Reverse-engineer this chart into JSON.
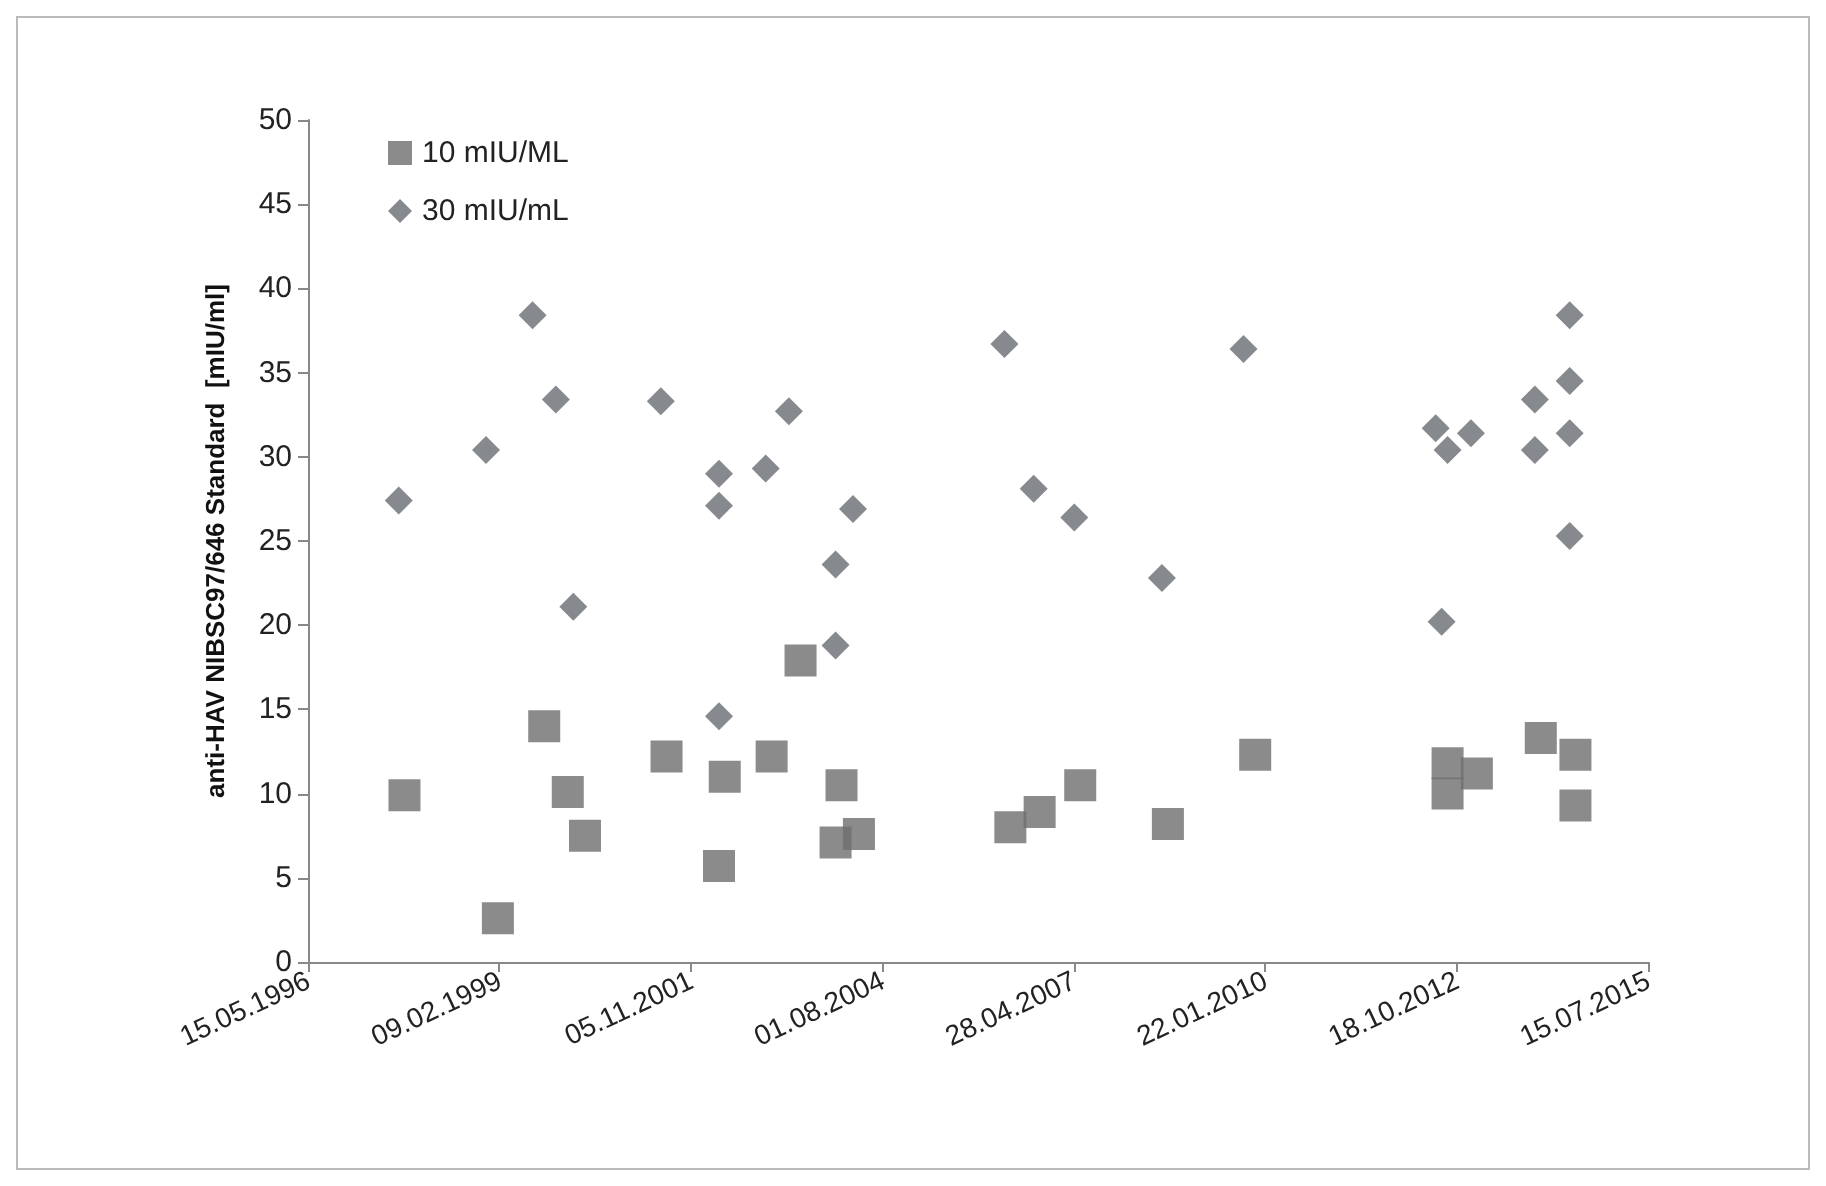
{
  "chart_data": {
    "type": "scatter",
    "ylabel": "anti-HAV NIBSC97/646 Standard  [mIU/ml]",
    "xlim": [
      "1996-05-15",
      "2015-07-15"
    ],
    "xticks": [
      {
        "value": "1996-05-15",
        "label": "15.05.1996"
      },
      {
        "value": "1999-02-09",
        "label": "09.02.1999"
      },
      {
        "value": "2001-11-05",
        "label": "05.11.2001"
      },
      {
        "value": "2004-08-01",
        "label": "01.08.2004"
      },
      {
        "value": "2007-04-28",
        "label": "28.04.2007"
      },
      {
        "value": "2010-01-22",
        "label": "22.01.2010"
      },
      {
        "value": "2012-10-18",
        "label": "18.10.2012"
      },
      {
        "value": "2015-07-15",
        "label": "15.07.2015"
      }
    ],
    "ylim": [
      0,
      50
    ],
    "yticks": [
      0,
      5,
      10,
      15,
      20,
      25,
      30,
      35,
      40,
      45,
      50
    ],
    "grid": false,
    "legend": "top left",
    "series": [
      {
        "name": "10 mIU/ML",
        "color": "#6e6e6e",
        "marker": "square",
        "x": [
          "1997-10",
          "1999-02",
          "1999-10",
          "2000-02",
          "2000-05",
          "2001-07",
          "2002-05",
          "2002-04",
          "2003-01",
          "2003-06",
          "2004-01",
          "2003-12",
          "2004-04",
          "2006-06",
          "2006-11",
          "2007-06",
          "2008-09",
          "2009-12",
          "2012-09",
          "2012-09",
          "2013-02",
          "2014-01",
          "2014-07",
          "2014-07"
        ],
        "values": [
          9.9,
          2.6,
          14.0,
          10.1,
          7.5,
          12.2,
          11.0,
          5.7,
          12.2,
          17.9,
          10.5,
          7.1,
          7.6,
          8.0,
          8.9,
          10.5,
          8.2,
          12.3,
          11.8,
          10.0,
          11.2,
          13.3,
          12.3,
          9.3
        ]
      },
      {
        "name": "30 mIU/mL",
        "color": "#686c70",
        "marker": "diamond",
        "x": [
          "1997-09",
          "1998-12",
          "1999-08",
          "1999-12",
          "2000-03",
          "2001-06",
          "2002-04",
          "2002-04",
          "2002-12",
          "2003-04",
          "2004-03",
          "2003-12",
          "2003-12",
          "2002-04",
          "2006-05",
          "2006-10",
          "2007-05",
          "2008-08",
          "2009-10",
          "2012-07",
          "2013-01",
          "2012-09",
          "2012-08",
          "2013-12",
          "2013-12",
          "2014-06",
          "2014-06",
          "2014-06",
          "2014-06"
        ],
        "values": [
          27.4,
          30.4,
          38.4,
          33.4,
          21.1,
          33.3,
          29.0,
          27.1,
          29.3,
          32.7,
          26.9,
          23.6,
          18.8,
          14.6,
          36.7,
          28.1,
          26.4,
          22.8,
          36.4,
          31.7,
          31.4,
          30.4,
          20.2,
          33.4,
          30.4,
          38.4,
          34.5,
          31.4,
          25.3
        ]
      }
    ]
  }
}
